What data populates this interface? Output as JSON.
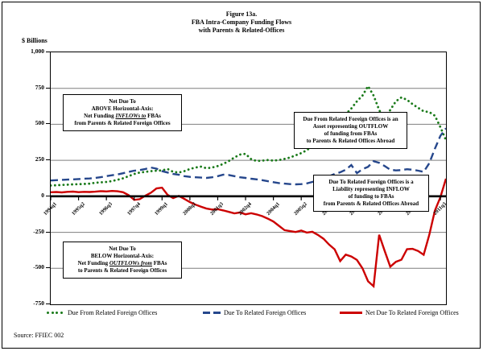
{
  "figure": {
    "title_line1": "Figure 13a.",
    "title_line2": "FBA Intra-Company Funding Flows",
    "title_line3": "with Parents & Related-Offices",
    "y_axis_unit": "$ Billions",
    "source": "Source: FFIEC 002"
  },
  "annotations": {
    "above_axis": {
      "line1": "Net Due To",
      "line2": "ABOVE Horizontal-Axis:",
      "line3_pre": "Net Funding ",
      "line3_emph": "INFLOWs to",
      "line3_post": " FBAs",
      "line4": "from Parents & Related Foreign Offices"
    },
    "due_from_box": {
      "line1": "Due From Related Foreign Offices is an",
      "line2": "Asset representing OUTFLOW",
      "line3": "of funding from FBAs",
      "line4": "to Parents & Related Offices Abroad"
    },
    "due_to_box": {
      "line1": "Due To Related Foreign Offices is a",
      "line2": "Liability representing INFLOW",
      "line3": "of funding to FBAs",
      "line4": "from Parents & Related Offices Abroad"
    },
    "below_axis": {
      "line1": "Net Due To",
      "line2": "BELOW Horizontal-Axis:",
      "line3_pre": "Net Funding ",
      "line3_emph": "OUTFLOWs from",
      "line3_post": " FBAs",
      "line4": "to Parents & Related Foreign Offices"
    }
  },
  "legend": {
    "items": [
      {
        "label": "Due From Related Foreign Offices",
        "style": "dotted"
      },
      {
        "label": "Due To Related Foreign Offices",
        "style": "dashed"
      },
      {
        "label": "Net Due To Related Foreign Offices",
        "style": "solid"
      }
    ]
  },
  "chart_data": {
    "type": "line",
    "title": "FBA Intra-Company Funding Flows with Parents & Related-Offices",
    "ylabel": "$ Billions",
    "ylim": [
      -750,
      1000
    ],
    "gridlines": [
      750,
      500,
      250,
      -250,
      -500
    ],
    "grid_on": true,
    "legend_position": "bottom",
    "frequency": "quarterly",
    "x_start": "1994q1",
    "x_end": "2011q4",
    "x_tick_every": 5,
    "x_tick_labels": [
      "1994q1",
      "1995q2",
      "1996q3",
      "1997q4",
      "1999q1",
      "2000q2",
      "2001q3",
      "2002q4",
      "2004q1",
      "2005q2",
      "2006q3",
      "2007q4",
      "2009q1",
      "2010q2",
      "2011q3"
    ],
    "y_ticks": [
      {
        "v": 1000,
        "label": "1,000"
      },
      {
        "v": 750,
        "label": "750"
      },
      {
        "v": 500,
        "label": "500"
      },
      {
        "v": 250,
        "label": "250"
      },
      {
        "v": 0,
        "label": "0"
      },
      {
        "v": -250,
        "label": "-250"
      },
      {
        "v": -500,
        "label": "-500"
      },
      {
        "v": -750,
        "label": "-750"
      }
    ],
    "series": [
      {
        "name": "Due From Related Foreign Offices",
        "color": "#1a7a1a",
        "style": "dotted",
        "width": 2.8,
        "values": [
          75,
          77,
          79,
          81,
          83,
          84,
          86,
          88,
          94,
          97,
          100,
          106,
          115,
          125,
          140,
          155,
          165,
          170,
          175,
          178,
          180,
          190,
          170,
          165,
          175,
          190,
          200,
          206,
          195,
          200,
          210,
          225,
          245,
          270,
          290,
          295,
          258,
          245,
          248,
          252,
          248,
          252,
          260,
          270,
          285,
          300,
          320,
          350,
          380,
          420,
          460,
          500,
          530,
          570,
          610,
          660,
          700,
          765,
          700,
          600,
          530,
          600,
          660,
          687,
          670,
          640,
          615,
          590,
          585,
          560,
          480,
          390
        ]
      },
      {
        "name": "Due To Related Foreign Offices",
        "color": "#26478c",
        "style": "dashed",
        "width": 2.4,
        "values": [
          110,
          112,
          114,
          116,
          118,
          120,
          122,
          124,
          128,
          133,
          140,
          146,
          152,
          160,
          170,
          178,
          182,
          190,
          200,
          192,
          175,
          165,
          155,
          150,
          140,
          135,
          132,
          130,
          128,
          132,
          140,
          150,
          148,
          140,
          132,
          128,
          122,
          118,
          112,
          105,
          98,
          92,
          88,
          85,
          83,
          85,
          90,
          100,
          110,
          125,
          139,
          155,
          167,
          185,
          217,
          161,
          189,
          205,
          244,
          233,
          210,
          185,
          180,
          182,
          188,
          185,
          178,
          170,
          230,
          330,
          420,
          472
        ]
      },
      {
        "name": "Net Due To Related Foreign Offices",
        "color": "#cc0000",
        "style": "solid",
        "width": 2.4,
        "values": [
          28,
          30,
          27,
          31,
          33,
          29,
          31,
          30,
          32,
          36,
          34,
          37,
          35,
          28,
          8,
          -25,
          -20,
          5,
          25,
          55,
          60,
          10,
          -12,
          3,
          -18,
          -40,
          -58,
          -72,
          -85,
          -92,
          -89,
          -98,
          -108,
          -118,
          -112,
          -125,
          -117,
          -126,
          -138,
          -155,
          -175,
          -205,
          -235,
          -242,
          -248,
          -238,
          -252,
          -246,
          -268,
          -295,
          -335,
          -368,
          -450,
          -405,
          -418,
          -442,
          -500,
          -590,
          -625,
          -267,
          -380,
          -489,
          -455,
          -440,
          -367,
          -365,
          -380,
          -406,
          -267,
          -100,
          -6,
          122
        ]
      }
    ]
  }
}
